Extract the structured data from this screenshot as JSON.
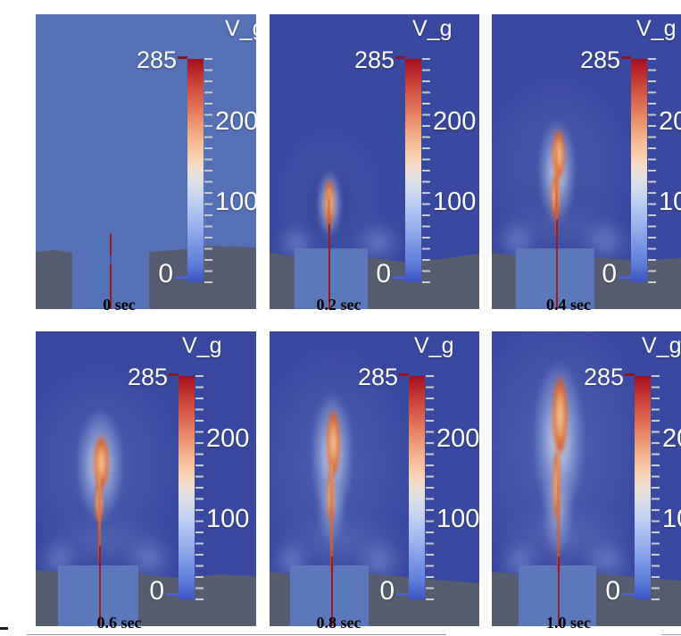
{
  "figure": {
    "description": "Six time snapshots of a simulated gas-jet velocity field V_g rising from a channel between ground blocks",
    "variable": "V_g",
    "colorbar": {
      "title": "V_g",
      "max_label": "285",
      "label_200": "200",
      "label_100": "100",
      "min_label": "0",
      "range": [
        0,
        285
      ],
      "colormap": "cool-to-warm (blue → white → red, red at top)",
      "color_max": "#9f0e21",
      "color_mid": "#efdfd5",
      "color_min": "#3f56c4",
      "tick_color": "#cccccc",
      "label_color": "#ffffff"
    },
    "panels": [
      {
        "time_label": "0 sec"
      },
      {
        "time_label": "0.2 sec"
      },
      {
        "time_label": "0.4 sec"
      },
      {
        "time_label": "0.6 sec"
      },
      {
        "time_label": "0.8 sec"
      },
      {
        "time_label": "1.0 sec"
      }
    ],
    "colors": {
      "background_initial": "#5571b5",
      "background_later": "#3a49a0",
      "ground": "#575d70",
      "channel": "#5b78bb",
      "jet_line": "#9a1c1f",
      "plume_hot": "#d45f33",
      "plume_core": "#f4d0a6",
      "plume_halo": "#e2e9f6",
      "caption_color": "#000000",
      "page_background": "#ffffff"
    }
  }
}
